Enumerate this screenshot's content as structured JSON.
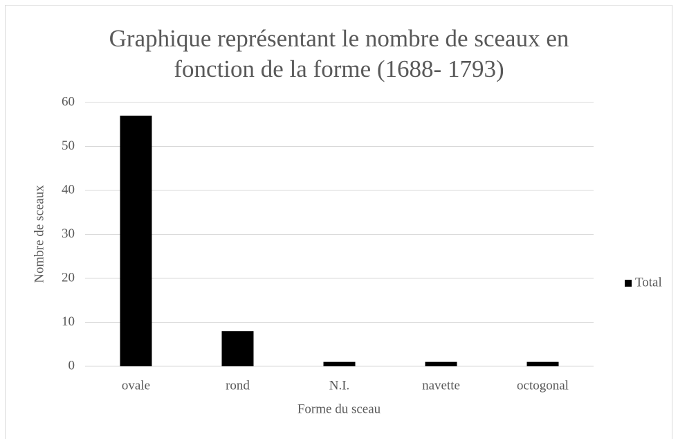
{
  "chart_data": {
    "type": "bar",
    "title": "Graphique représentant le nombre de sceaux en fonction de la forme (1688- 1793)",
    "xlabel": "Forme du sceau",
    "ylabel": "Nombre de sceaux",
    "categories": [
      "ovale",
      "rond",
      "N.I.",
      "navette",
      "octogonal"
    ],
    "series": [
      {
        "name": "Total",
        "color": "#000000",
        "values": [
          57,
          8,
          1,
          1,
          1
        ]
      }
    ],
    "ylim": [
      0,
      60
    ],
    "yticks": [
      0,
      10,
      20,
      30,
      40,
      50,
      60
    ],
    "grid": true,
    "legend": "right"
  }
}
